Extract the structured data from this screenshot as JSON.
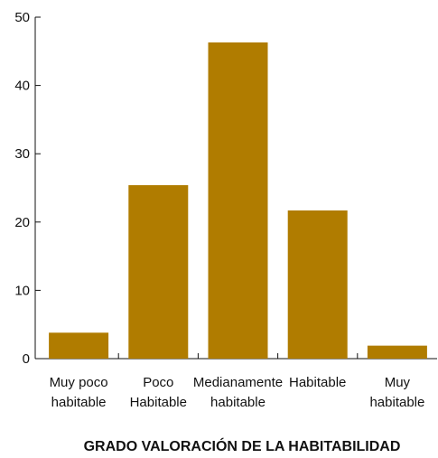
{
  "chart_data": {
    "type": "bar",
    "title": "",
    "xlabel": "GRADO VALORACIÓN DE LA HABITABILIDAD",
    "ylabel": "",
    "ylim": [
      0,
      50
    ],
    "yticks": [
      "0",
      "10",
      "20",
      "30",
      "40",
      "50"
    ],
    "categories": [
      [
        "Muy poco",
        "habitable"
      ],
      [
        "Poco",
        "Habitable"
      ],
      [
        "Medianamente",
        "habitable"
      ],
      [
        "Habitable"
      ],
      [
        "Muy",
        "habitable"
      ]
    ],
    "values": [
      3.8,
      25.4,
      46.3,
      21.7,
      1.9
    ],
    "grid": false,
    "legend": "none",
    "bar_color": "#b07c00"
  }
}
